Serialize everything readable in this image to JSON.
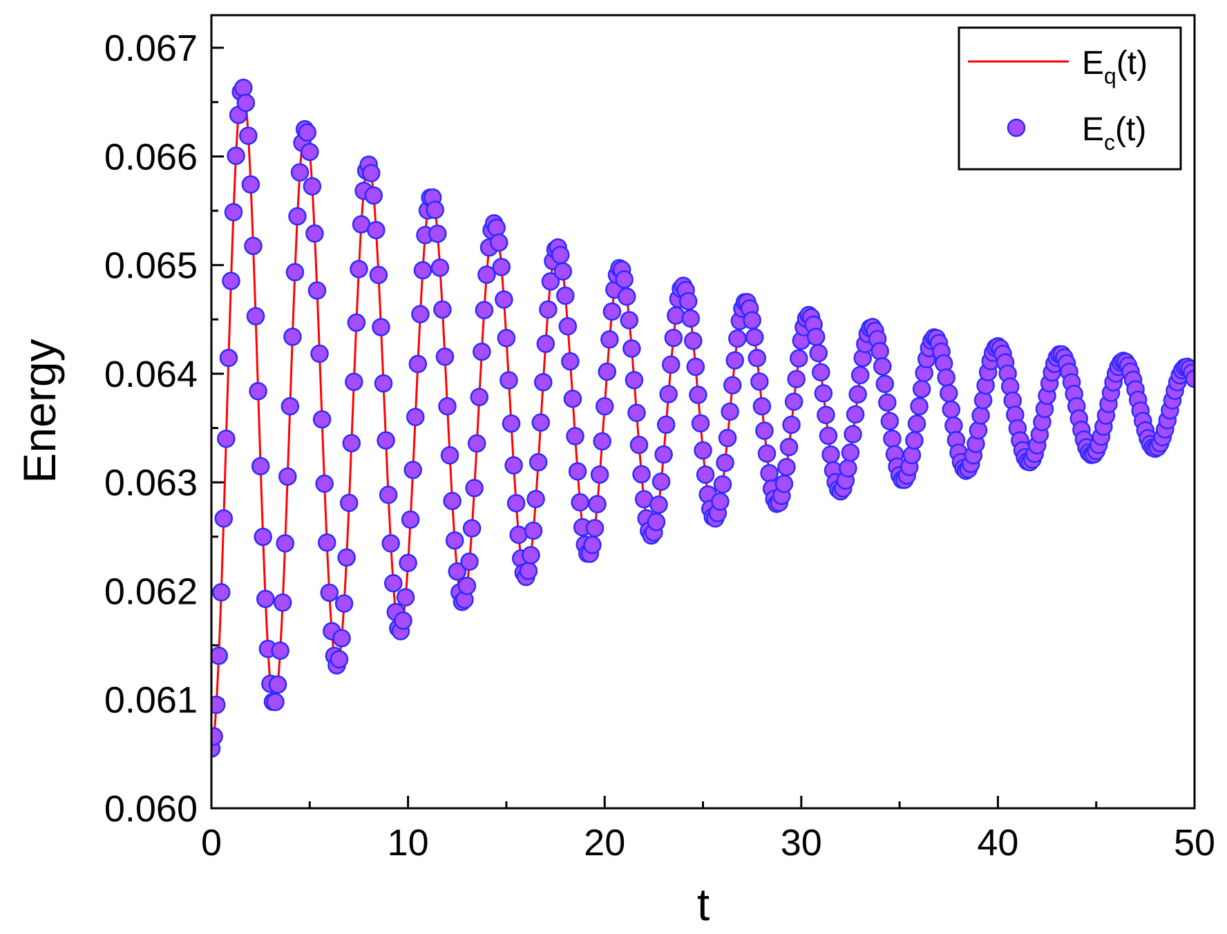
{
  "chart_data": {
    "type": "line",
    "xlabel": "t",
    "ylabel": "Energy",
    "xlim": [
      0,
      50
    ],
    "ylim": [
      0.06,
      0.0673
    ],
    "xticks": [
      0,
      10,
      20,
      30,
      40,
      50
    ],
    "xtick_labels": [
      "0",
      "10",
      "20",
      "30",
      "40",
      "50"
    ],
    "yticks": [
      0.06,
      0.061,
      0.062,
      0.063,
      0.064,
      0.065,
      0.066,
      0.067
    ],
    "ytick_labels": [
      "0.060",
      "0.061",
      "0.062",
      "0.063",
      "0.064",
      "0.065",
      "0.066",
      "0.067"
    ],
    "grid": false,
    "legend_position": "top-right",
    "series": [
      {
        "name": "E",
        "name_subscript": "q",
        "name_suffix": "(t)",
        "kind": "line",
        "color": "#ff0000",
        "model": {
          "mean": 0.0637,
          "amplitude": 0.00315,
          "decay": 0.0435,
          "period": 3.2,
          "t_start": 0.15,
          "t_end": 50,
          "step": 0.025
        }
      },
      {
        "name": "E",
        "name_subscript": "c",
        "name_suffix": "(t)",
        "kind": "scatter",
        "color": "#a64dff",
        "edge_color": "#2b2bff",
        "model": {
          "mean": 0.0637,
          "amplitude": 0.00315,
          "decay": 0.0435,
          "period": 3.2,
          "t_start": 0,
          "t_end": 50,
          "step": 0.125
        }
      }
    ]
  }
}
